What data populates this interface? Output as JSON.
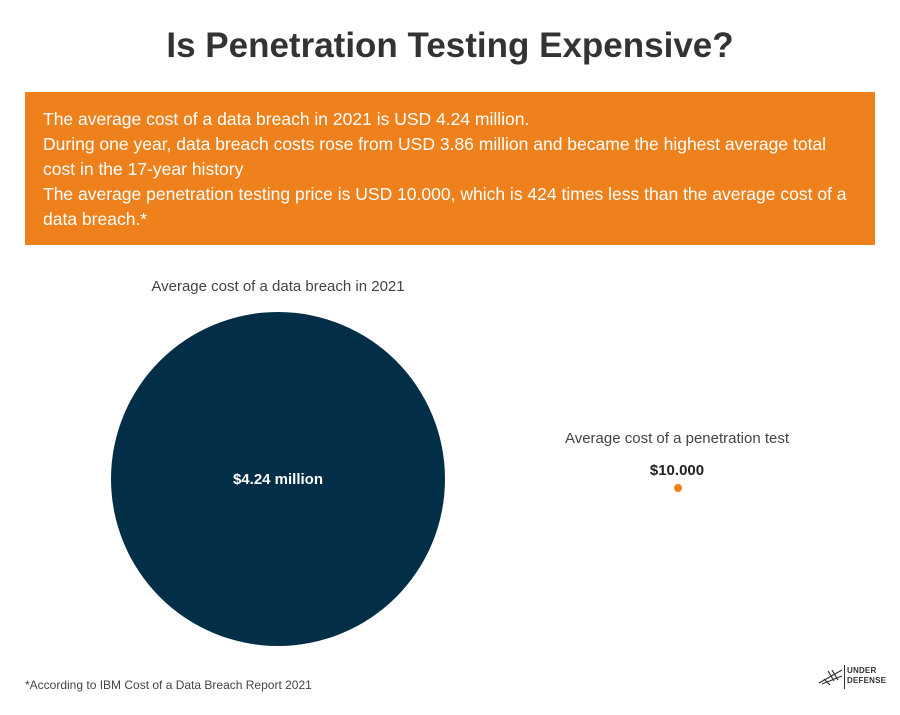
{
  "title": "Is Penetration Testing Expensive?",
  "banner": {
    "lines": [
      "The average cost of a data breach in 2021 is USD 4.24 million.",
      "During one year, data breach costs rose from USD 3.86 million and became the highest average total cost in the 17-year history",
      "The average penetration testing price is USD 10.000, which is 424 times less than the average cost of a data breach.*"
    ],
    "background": "#ef811d"
  },
  "comparison": {
    "breach": {
      "caption": "Average cost of a data breach in 2021",
      "value_label": "$4.24 million",
      "color": "#022f47"
    },
    "pentest": {
      "caption": "Average cost of a penetration test",
      "value_label": "$10.000",
      "color": "#ef811d"
    }
  },
  "footnote": "*According to IBM Cost of a Data Breach Report 2021",
  "logo": {
    "line1": "UNDER",
    "line2": "DEFENSE",
    "icon": "underdefense-logo-icon"
  }
}
